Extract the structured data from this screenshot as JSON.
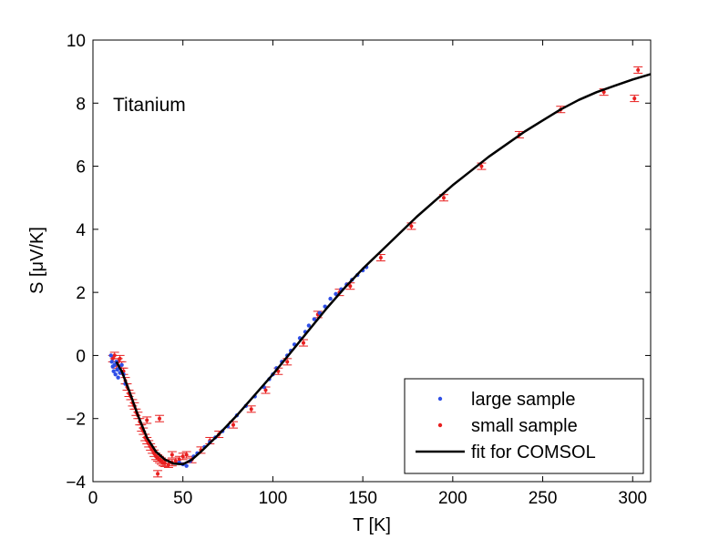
{
  "chart_data": {
    "type": "scatter",
    "title": "",
    "annotation": "Titanium",
    "xlabel": "T [K]",
    "ylabel": "S [μV/K]",
    "xlim": [
      0,
      310
    ],
    "ylim": [
      -4,
      10
    ],
    "xticks": [
      0,
      50,
      100,
      150,
      200,
      250,
      300
    ],
    "yticks": [
      -4,
      -2,
      0,
      2,
      4,
      6,
      8,
      10
    ],
    "xtick_labels": [
      "0",
      "50",
      "100",
      "150",
      "200",
      "250",
      "300"
    ],
    "ytick_labels": [
      "−4",
      "−2",
      "0",
      "2",
      "4",
      "6",
      "8",
      "10"
    ],
    "grid": false,
    "legend_position": "bottom-right",
    "colors": {
      "large": "#2f4fe6",
      "small": "#e81f1f",
      "fit": "#000000"
    },
    "series": [
      {
        "name": "large sample",
        "kind": "points",
        "color": "#2f4fe6",
        "points": [
          [
            10,
            0.0
          ],
          [
            10.5,
            -0.2
          ],
          [
            11,
            -0.35
          ],
          [
            11.5,
            -0.5
          ],
          [
            12,
            -0.3
          ],
          [
            12.5,
            -0.6
          ],
          [
            13,
            -0.2
          ],
          [
            13.5,
            -0.45
          ],
          [
            14,
            -0.7
          ],
          [
            14.5,
            -0.4
          ],
          [
            15,
            -0.55
          ],
          [
            16,
            -0.3
          ],
          [
            17,
            -0.6
          ],
          [
            18,
            -0.9
          ],
          [
            48,
            -3.4
          ],
          [
            50,
            -3.45
          ],
          [
            52,
            -3.5
          ],
          [
            54,
            -3.35
          ],
          [
            56,
            -3.2
          ],
          [
            58,
            -3.1
          ],
          [
            62,
            -2.9
          ],
          [
            65,
            -2.75
          ],
          [
            68,
            -2.6
          ],
          [
            72,
            -2.4
          ],
          [
            75,
            -2.25
          ],
          [
            80,
            -1.9
          ],
          [
            85,
            -1.6
          ],
          [
            90,
            -1.3
          ],
          [
            95,
            -1.0
          ],
          [
            98,
            -0.75
          ],
          [
            100,
            -0.6
          ],
          [
            102,
            -0.4
          ],
          [
            105,
            -0.2
          ],
          [
            108,
            0.0
          ],
          [
            110,
            0.15
          ],
          [
            112,
            0.35
          ],
          [
            115,
            0.55
          ],
          [
            118,
            0.75
          ],
          [
            120,
            0.95
          ],
          [
            123,
            1.15
          ],
          [
            126,
            1.35
          ],
          [
            129,
            1.55
          ],
          [
            132,
            1.8
          ],
          [
            135,
            1.95
          ],
          [
            138,
            2.1
          ],
          [
            141,
            2.25
          ],
          [
            144,
            2.4
          ],
          [
            147,
            2.55
          ],
          [
            150,
            2.7
          ],
          [
            152,
            2.8
          ]
        ]
      },
      {
        "name": "small sample",
        "kind": "points-with-errorbars",
        "color": "#e81f1f",
        "points": [
          [
            11,
            -0.1
          ],
          [
            12,
            0.0
          ],
          [
            13,
            -0.3
          ],
          [
            14,
            -0.2
          ],
          [
            15,
            -0.1
          ],
          [
            16,
            -0.3
          ],
          [
            17,
            -0.5
          ],
          [
            18,
            -0.8
          ],
          [
            19,
            -1.0
          ],
          [
            20,
            -1.2
          ],
          [
            21,
            -1.3
          ],
          [
            22,
            -1.5
          ],
          [
            23,
            -1.6
          ],
          [
            24,
            -1.8
          ],
          [
            25,
            -1.9
          ],
          [
            26,
            -2.1
          ],
          [
            27,
            -2.3
          ],
          [
            28,
            -2.4
          ],
          [
            29,
            -2.6
          ],
          [
            30,
            -2.7
          ],
          [
            31,
            -2.8
          ],
          [
            32,
            -2.9
          ],
          [
            33,
            -3.0
          ],
          [
            34,
            -3.1
          ],
          [
            35,
            -3.2
          ],
          [
            36,
            -3.25
          ],
          [
            37,
            -3.3
          ],
          [
            38,
            -3.35
          ],
          [
            39,
            -3.4
          ],
          [
            40,
            -3.42
          ],
          [
            42,
            -3.45
          ],
          [
            44,
            -3.4
          ],
          [
            46,
            -3.35
          ],
          [
            48,
            -3.3
          ],
          [
            50,
            -3.2
          ],
          [
            36,
            -3.75
          ],
          [
            37,
            -2.0
          ],
          [
            30,
            -2.05
          ],
          [
            44,
            -3.15
          ],
          [
            52,
            -3.15
          ],
          [
            55,
            -3.3
          ],
          [
            60,
            -3.0
          ],
          [
            65,
            -2.7
          ],
          [
            70,
            -2.5
          ],
          [
            78,
            -2.2
          ],
          [
            88,
            -1.7
          ],
          [
            96,
            -1.1
          ],
          [
            103,
            -0.5
          ],
          [
            108,
            -0.2
          ],
          [
            117,
            0.4
          ],
          [
            125,
            1.3
          ],
          [
            137,
            2.0
          ],
          [
            143,
            2.2
          ],
          [
            160,
            3.1
          ],
          [
            177,
            4.1
          ],
          [
            195,
            5.0
          ],
          [
            216,
            6.0
          ],
          [
            237,
            7.0
          ],
          [
            260,
            7.8
          ],
          [
            284,
            8.35
          ],
          [
            301,
            8.15
          ],
          [
            303,
            9.05
          ]
        ]
      },
      {
        "name": "fit for COMSOL",
        "kind": "line",
        "color": "#000000",
        "x": [
          13,
          16,
          20,
          25,
          30,
          35,
          40,
          45,
          50,
          55,
          60,
          70,
          80,
          90,
          100,
          110,
          120,
          130,
          140,
          150,
          160,
          170,
          180,
          190,
          200,
          210,
          220,
          230,
          240,
          250,
          260,
          270,
          280,
          290,
          300,
          310
        ],
        "y": [
          -0.2,
          -0.5,
          -1.1,
          -1.9,
          -2.6,
          -3.05,
          -3.3,
          -3.43,
          -3.45,
          -3.3,
          -3.05,
          -2.5,
          -1.9,
          -1.25,
          -0.6,
          0.1,
          0.8,
          1.5,
          2.15,
          2.75,
          3.3,
          3.85,
          4.4,
          4.9,
          5.4,
          5.85,
          6.3,
          6.7,
          7.1,
          7.45,
          7.8,
          8.1,
          8.35,
          8.55,
          8.75,
          8.92
        ]
      }
    ]
  }
}
